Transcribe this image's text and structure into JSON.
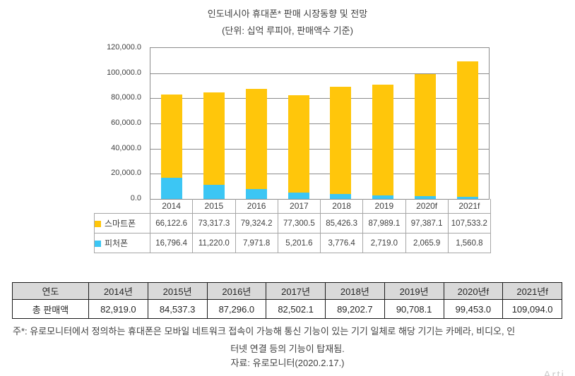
{
  "chart": {
    "title": "인도네시아 휴대폰* 판매 시장동향 및 전망",
    "subtitle": "(단위: 십억 루피아, 판매액수 기준)"
  },
  "chart_data": {
    "type": "bar",
    "stacked": true,
    "categories": [
      "2014",
      "2015",
      "2016",
      "2017",
      "2018",
      "2019",
      "2020f",
      "2021f"
    ],
    "series": [
      {
        "name": "스마트폰",
        "key": "smartphone",
        "values": [
          66122.6,
          73317.3,
          79324.2,
          77300.5,
          85426.3,
          87989.1,
          97387.1,
          107533.2
        ]
      },
      {
        "name": "피처폰",
        "key": "featurephone",
        "values": [
          16796.4,
          11220.0,
          7971.8,
          5201.6,
          3776.4,
          2719.0,
          2065.9,
          1560.8
        ]
      }
    ],
    "stack_order_bottom_to_top": [
      "피처폰",
      "스마트폰"
    ],
    "ylim": [
      0,
      120000
    ],
    "ytick_step": 20000,
    "grid": true,
    "legend_position": "data-table-left"
  },
  "summary_table": {
    "headers": [
      "연도",
      "2014년",
      "2015년",
      "2016년",
      "2017년",
      "2018년",
      "2019년",
      "2020년f",
      "2021년f"
    ],
    "rows": [
      [
        "총 판매액",
        "82,919.0",
        "84,537.3",
        "87,296.0",
        "82,502.1",
        "89,202.7",
        "90,708.1",
        "99,453.0",
        "109,094.0"
      ]
    ]
  },
  "notes": {
    "line1": "주*: 유로모니터에서 정의하는 휴대폰은 모바일 네트워크 접속이 가능해 통신 기능이 있는 기기 일체로 해당 기기는 카메라, 비디오, 인",
    "line2": "터넷 연결 등의 기능이 탑재됨.",
    "source": "자료: 유로모니터(2020.2.17.)"
  },
  "watermark": "Arti",
  "colors": {
    "smartphone": "#FFC60B",
    "featurephone": "#3CC6F4",
    "grid": "#8C8C8C",
    "table_border": "#A6A6A6",
    "summary_border": "#1A1A1A",
    "summary_header_bg": "#D9D9D9",
    "text": "#404040"
  }
}
